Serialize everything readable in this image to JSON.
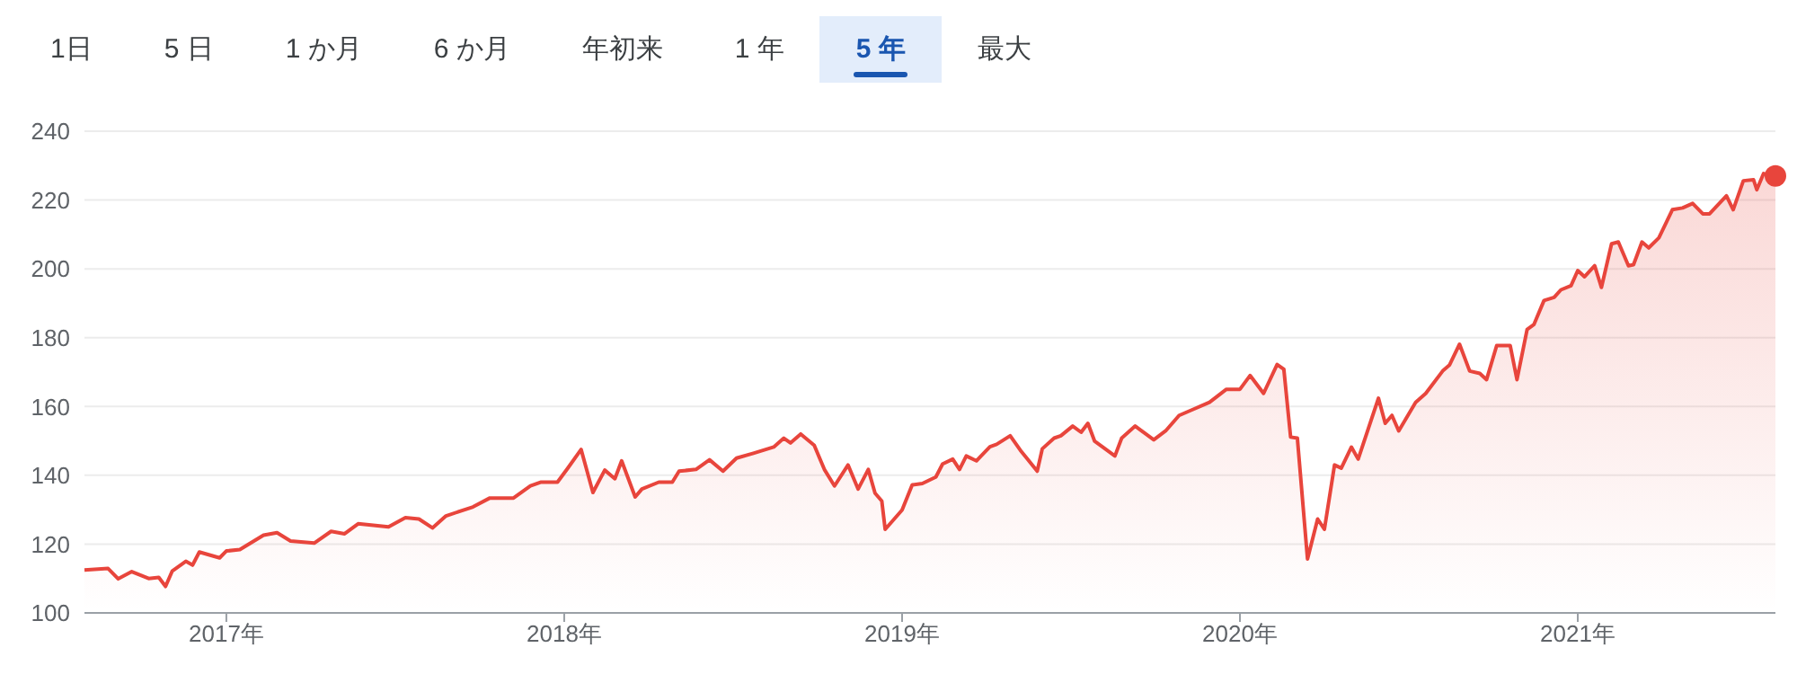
{
  "chart_data": {
    "type": "area",
    "annotations": [
      "1日",
      "5 日",
      "1 か月",
      "6 か月",
      "年初来",
      "1 年",
      "5 年",
      "最大"
    ],
    "xlim": [
      2016.58,
      2021.585
    ],
    "xticks": [
      {
        "value": 2017,
        "label": "2017年"
      },
      {
        "value": 2018,
        "label": "2018年"
      },
      {
        "value": 2019,
        "label": "2019年"
      },
      {
        "value": 2020,
        "label": "2020年"
      },
      {
        "value": 2021,
        "label": "2021年"
      }
    ],
    "ylim": [
      100,
      240
    ],
    "yticks": [
      100,
      120,
      140,
      160,
      180,
      200,
      220,
      240
    ],
    "grid": "y",
    "series": [
      {
        "color": "#e8453c",
        "marker": "none",
        "x": [
          2016.58,
          2016.65,
          2016.68,
          2016.72,
          2016.77,
          2016.8,
          2016.82,
          2016.84,
          2016.88,
          2016.9,
          2016.92,
          2016.98,
          2017.0,
          2017.04,
          2017.11,
          2017.15,
          2017.19,
          2017.26,
          2017.31,
          2017.35,
          2017.39,
          2017.48,
          2017.53,
          2017.57,
          2017.61,
          2017.65,
          2017.73,
          2017.78,
          2017.85,
          2017.9,
          2017.93,
          2017.98,
          2018.01,
          2018.05,
          2018.085,
          2018.12,
          2018.15,
          2018.17,
          2018.21,
          2018.23,
          2018.28,
          2018.32,
          2018.34,
          2018.39,
          2018.43,
          2018.47,
          2018.51,
          2018.56,
          2018.62,
          2018.65,
          2018.67,
          2018.7,
          2018.74,
          2018.77,
          2018.8,
          2018.84,
          2018.87,
          2018.9,
          2018.92,
          2018.94,
          2018.95,
          2019.0,
          2019.03,
          2019.06,
          2019.1,
          2019.12,
          2019.15,
          2019.17,
          2019.19,
          2019.22,
          2019.26,
          2019.28,
          2019.32,
          2019.35,
          2019.4,
          2019.415,
          2019.45,
          2019.47,
          2019.505,
          2019.53,
          2019.55,
          2019.57,
          2019.63,
          2019.65,
          2019.69,
          2019.745,
          2019.78,
          2019.82,
          2019.86,
          2019.91,
          2019.96,
          2020.0,
          2020.03,
          2020.07,
          2020.11,
          2020.13,
          2020.15,
          2020.17,
          2020.2,
          2020.23,
          2020.25,
          2020.28,
          2020.3,
          2020.33,
          2020.35,
          2020.41,
          2020.43,
          2020.45,
          2020.47,
          2020.52,
          2020.55,
          2020.6,
          2020.62,
          2020.65,
          2020.68,
          2020.71,
          2020.73,
          2020.76,
          2020.8,
          2020.82,
          2020.85,
          2020.87,
          2020.9,
          2020.93,
          2020.95,
          2020.98,
          2021.0,
          2021.02,
          2021.05,
          2021.07,
          2021.1,
          2021.12,
          2021.15,
          2021.165,
          2021.19,
          2021.21,
          2021.24,
          2021.28,
          2021.31,
          2021.34,
          2021.37,
          2021.39,
          2021.44,
          2021.46,
          2021.49,
          2021.52,
          2021.53,
          2021.55,
          2021.585
        ],
        "values": [
          112.5,
          112.9,
          109.9,
          112,
          110,
          110.3,
          107.7,
          112.2,
          115,
          113.9,
          117.7,
          116,
          118,
          118.4,
          122.6,
          123.3,
          120.9,
          120.3,
          123.7,
          123,
          125.9,
          125,
          127.7,
          127.3,
          124.7,
          128.2,
          130.8,
          133.4,
          133.4,
          136.9,
          138,
          138,
          142,
          147.5,
          135,
          141.5,
          139,
          144.2,
          133.7,
          136,
          138,
          138,
          141.2,
          141.7,
          144.5,
          141.2,
          145,
          146.4,
          148.2,
          150.8,
          149.4,
          152,
          148.7,
          141.7,
          136.9,
          143,
          136,
          141.7,
          134.8,
          132.5,
          124.3,
          129.9,
          137.2,
          137.6,
          139.5,
          143.3,
          144.7,
          141.7,
          145.6,
          144.2,
          148.3,
          149,
          151.5,
          147.3,
          141.2,
          147.7,
          150.8,
          151.5,
          154.3,
          152.5,
          155.1,
          149.9,
          145.6,
          150.8,
          154.3,
          150.3,
          152.9,
          157.4,
          159.1,
          161.2,
          165,
          165,
          169,
          163.8,
          172.2,
          170.8,
          151.1,
          150.8,
          115.7,
          127.3,
          124.3,
          143,
          142.1,
          148.2,
          144.7,
          162.4,
          155.1,
          157.4,
          152.9,
          161.2,
          163.8,
          170.3,
          172,
          178.1,
          170.3,
          169.6,
          167.8,
          177.7,
          177.7,
          167.8,
          182.4,
          183.8,
          190.8,
          191.7,
          193.9,
          195.1,
          199.5,
          197.7,
          200.9,
          194.6,
          207.3,
          207.8,
          200.9,
          201.2,
          207.8,
          206.1,
          209,
          217.2,
          217.7,
          219,
          216,
          216,
          221.2,
          217.2,
          225.6,
          225.9,
          223,
          227.7,
          227
        ]
      },
      {
        "type": "scatter",
        "color": "#e8453c",
        "marker": "circle",
        "x": [
          2021.585
        ],
        "values": [
          227
        ]
      }
    ]
  }
}
